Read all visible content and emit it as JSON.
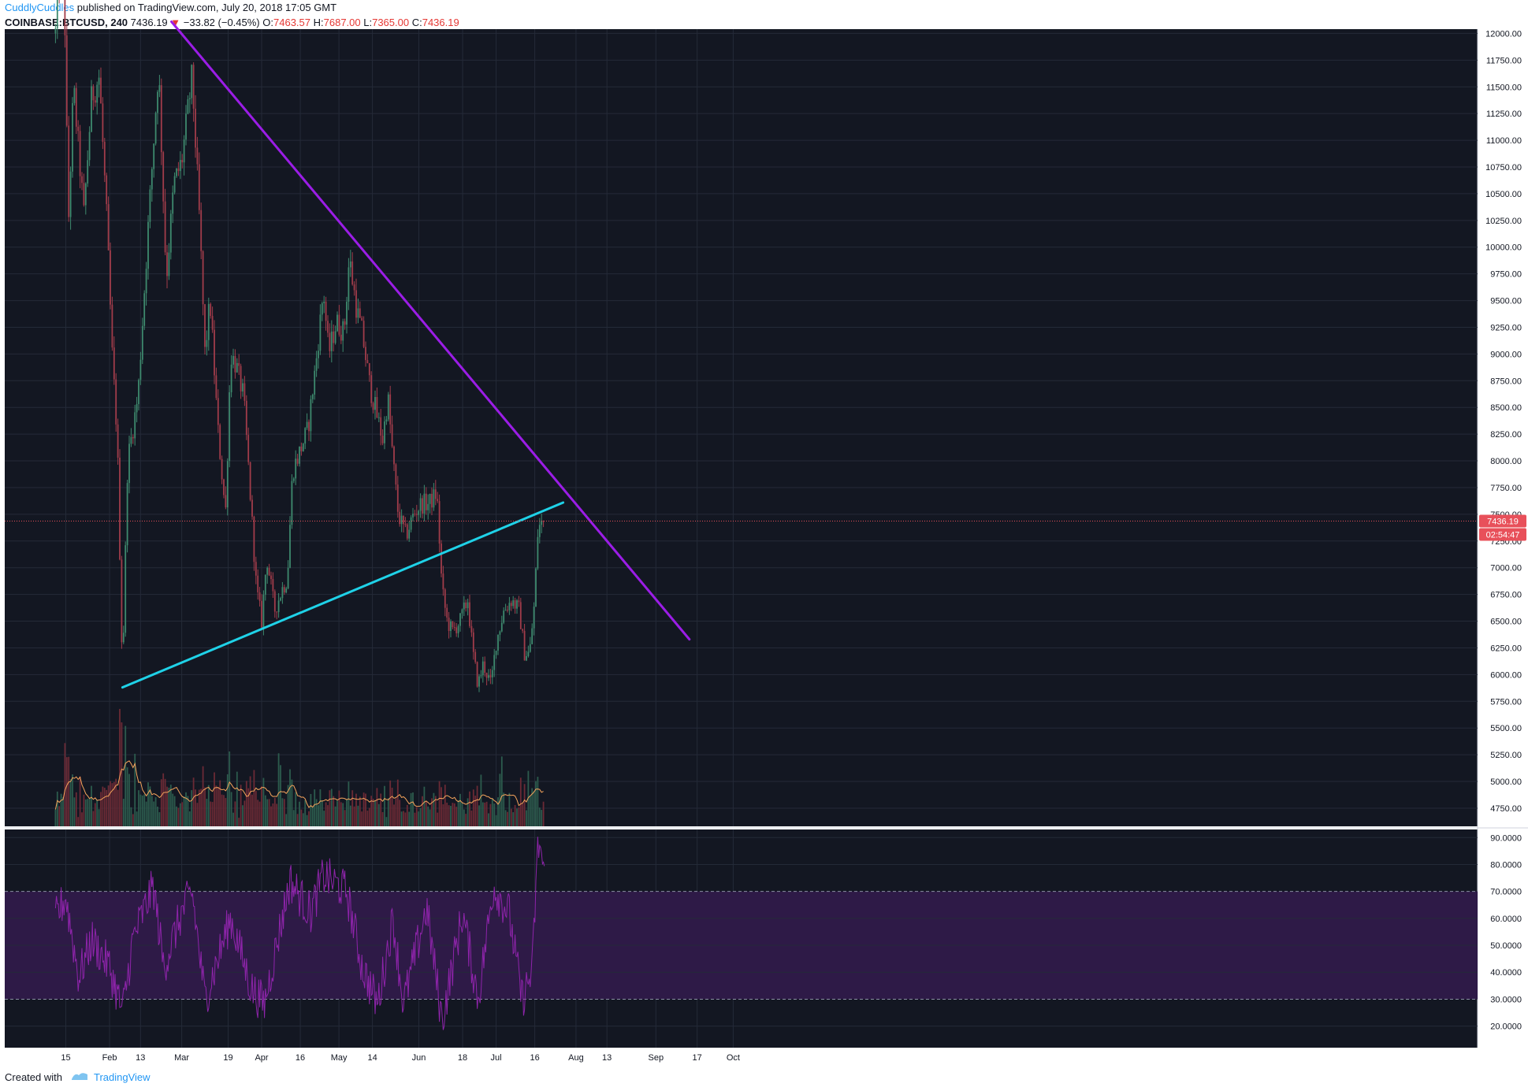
{
  "header": {
    "author": "CuddlyCuddles",
    "published": " published on TradingView.com, July 20, 2018 17:05 GMT",
    "symbol": "COINBASE:BTCUSD, 240",
    "last": "7436.19",
    "arrow": "▼",
    "change": "−33.82 (−0.45%)",
    "o_label": "O:",
    "open": "7463.57",
    "h_label": "H:",
    "high": "7687.00",
    "l_label": "L:",
    "low": "7365.00",
    "c_label": "C:",
    "close": "7436.19"
  },
  "footer": {
    "created_with": "Created with",
    "brand": "TradingView"
  },
  "colors": {
    "background": "#131722",
    "grid": "#242a38",
    "up": "#3e8a6e",
    "down": "#a13c4a",
    "resistance": "#9b1de6",
    "support": "#1fd2e8",
    "rsi": "#8e24aa",
    "rsi_band": "#2e1a47",
    "volume_ma": "#f5a45c",
    "price_badge": "#e8505a"
  },
  "price_badge": {
    "price": "7436.19",
    "countdown": "02:54:47"
  },
  "chart_data": [
    {
      "type": "candlestick",
      "symbol": "COINBASE:BTCUSD",
      "interval": "240",
      "x_ticks": [
        "15",
        "Feb",
        "13",
        "Mar",
        "19",
        "Apr",
        "16",
        "May",
        "14",
        "Jun",
        "18",
        "Jul",
        "16",
        "Aug",
        "13",
        "Sep",
        "17",
        "Oct"
      ],
      "y_ticks": [
        "12000.00",
        "11750.00",
        "11500.00",
        "11250.00",
        "11000.00",
        "10750.00",
        "10500.00",
        "10250.00",
        "10000.00",
        "9750.00",
        "9500.00",
        "9250.00",
        "9000.00",
        "8750.00",
        "8500.00",
        "8250.00",
        "8000.00",
        "7750.00",
        "7500.00",
        "7250.00",
        "7000.00",
        "6750.00",
        "6500.00",
        "6250.00",
        "6000.00",
        "5750.00",
        "5500.00",
        "5250.00",
        "5000.00",
        "4750.00"
      ],
      "ylim": [
        4580,
        12040
      ],
      "last_price": 7436.19,
      "price_path": [
        [
          "2018-01-11",
          12000
        ],
        [
          "2018-01-14",
          13000
        ],
        [
          "2018-01-16",
          10200
        ],
        [
          "2018-01-18",
          11500
        ],
        [
          "2018-01-22",
          10300
        ],
        [
          "2018-01-25",
          11400
        ],
        [
          "2018-01-28",
          11600
        ],
        [
          "2018-01-31",
          10200
        ],
        [
          "2018-02-02",
          9000
        ],
        [
          "2018-02-04",
          8200
        ],
        [
          "2018-02-06",
          6000
        ],
        [
          "2018-02-08",
          8000
        ],
        [
          "2018-02-12",
          8600
        ],
        [
          "2018-02-16",
          10200
        ],
        [
          "2018-02-20",
          11700
        ],
        [
          "2018-02-23",
          9700
        ],
        [
          "2018-02-26",
          10600
        ],
        [
          "2018-03-01",
          10800
        ],
        [
          "2018-03-05",
          11600
        ],
        [
          "2018-03-08",
          10200
        ],
        [
          "2018-03-10",
          9000
        ],
        [
          "2018-03-12",
          9500
        ],
        [
          "2018-03-15",
          8300
        ],
        [
          "2018-03-18",
          7500
        ],
        [
          "2018-03-20",
          9000
        ],
        [
          "2018-03-22",
          8900
        ],
        [
          "2018-03-25",
          8600
        ],
        [
          "2018-03-27",
          7900
        ],
        [
          "2018-03-30",
          6800
        ],
        [
          "2018-04-01",
          6500
        ],
        [
          "2018-04-03",
          7100
        ],
        [
          "2018-04-06",
          6600
        ],
        [
          "2018-04-09",
          6800
        ],
        [
          "2018-04-11",
          6900
        ],
        [
          "2018-04-13",
          7900
        ],
        [
          "2018-04-16",
          8100
        ],
        [
          "2018-04-19",
          8300
        ],
        [
          "2018-04-22",
          8900
        ],
        [
          "2018-04-25",
          9600
        ],
        [
          "2018-04-27",
          9000
        ],
        [
          "2018-04-30",
          9300
        ],
        [
          "2018-05-03",
          9200
        ],
        [
          "2018-05-05",
          9900
        ],
        [
          "2018-05-08",
          9400
        ],
        [
          "2018-05-10",
          9200
        ],
        [
          "2018-05-13",
          8700
        ],
        [
          "2018-05-15",
          8500
        ],
        [
          "2018-05-18",
          8200
        ],
        [
          "2018-05-20",
          8600
        ],
        [
          "2018-05-22",
          8000
        ],
        [
          "2018-05-24",
          7500
        ],
        [
          "2018-05-27",
          7300
        ],
        [
          "2018-05-30",
          7500
        ],
        [
          "2018-06-02",
          7600
        ],
        [
          "2018-06-05",
          7600
        ],
        [
          "2018-06-08",
          7700
        ],
        [
          "2018-06-10",
          6800
        ],
        [
          "2018-06-12",
          6500
        ],
        [
          "2018-06-14",
          6400
        ],
        [
          "2018-06-17",
          6500
        ],
        [
          "2018-06-20",
          6700
        ],
        [
          "2018-06-22",
          6200
        ],
        [
          "2018-06-24",
          5900
        ],
        [
          "2018-06-26",
          6100
        ],
        [
          "2018-06-29",
          5900
        ],
        [
          "2018-07-01",
          6300
        ],
        [
          "2018-07-04",
          6600
        ],
        [
          "2018-07-07",
          6700
        ],
        [
          "2018-07-10",
          6600
        ],
        [
          "2018-07-12",
          6200
        ],
        [
          "2018-07-14",
          6200
        ],
        [
          "2018-07-16",
          6700
        ],
        [
          "2018-07-17",
          7300
        ],
        [
          "2018-07-18",
          7400
        ],
        [
          "2018-07-20",
          7436.19
        ]
      ],
      "trendlines": [
        {
          "name": "",
          "color": "#9b1de6",
          "points": [
            [
              "2018-02-25",
              12110
            ],
            [
              "2018-09-14",
              6330
            ]
          ]
        },
        {
          "name": "",
          "color": "#1fd2e8",
          "points": [
            [
              "2018-02-06",
              5880
            ],
            [
              "2018-07-27",
              7610
            ]
          ]
        }
      ]
    },
    {
      "type": "line",
      "indicator": "RSI",
      "y_ticks": [
        "90.0000",
        "80.0000",
        "70.0000",
        "60.0000",
        "50.0000",
        "40.0000",
        "30.0000",
        "20.0000"
      ],
      "ylim": [
        12,
        93
      ],
      "bands": [
        30,
        70
      ],
      "path": [
        [
          "2018-01-11",
          60
        ],
        [
          "2018-01-15",
          68
        ],
        [
          "2018-01-20",
          38
        ],
        [
          "2018-01-25",
          52
        ],
        [
          "2018-02-01",
          42
        ],
        [
          "2018-02-06",
          25
        ],
        [
          "2018-02-10",
          52
        ],
        [
          "2018-02-18",
          72
        ],
        [
          "2018-02-22",
          42
        ],
        [
          "2018-03-01",
          62
        ],
        [
          "2018-03-05",
          70
        ],
        [
          "2018-03-10",
          30
        ],
        [
          "2018-03-20",
          60
        ],
        [
          "2018-03-28",
          34
        ],
        [
          "2018-04-02",
          28
        ],
        [
          "2018-04-12",
          74
        ],
        [
          "2018-04-20",
          62
        ],
        [
          "2018-04-25",
          76
        ],
        [
          "2018-05-04",
          70
        ],
        [
          "2018-05-10",
          42
        ],
        [
          "2018-05-16",
          28
        ],
        [
          "2018-05-22",
          60
        ],
        [
          "2018-05-26",
          28
        ],
        [
          "2018-06-04",
          64
        ],
        [
          "2018-06-10",
          22
        ],
        [
          "2018-06-18",
          62
        ],
        [
          "2018-06-24",
          30
        ],
        [
          "2018-06-30",
          72
        ],
        [
          "2018-07-06",
          62
        ],
        [
          "2018-07-11",
          30
        ],
        [
          "2018-07-15",
          40
        ],
        [
          "2018-07-17",
          84
        ],
        [
          "2018-07-18",
          88
        ],
        [
          "2018-07-20",
          72
        ]
      ]
    }
  ]
}
